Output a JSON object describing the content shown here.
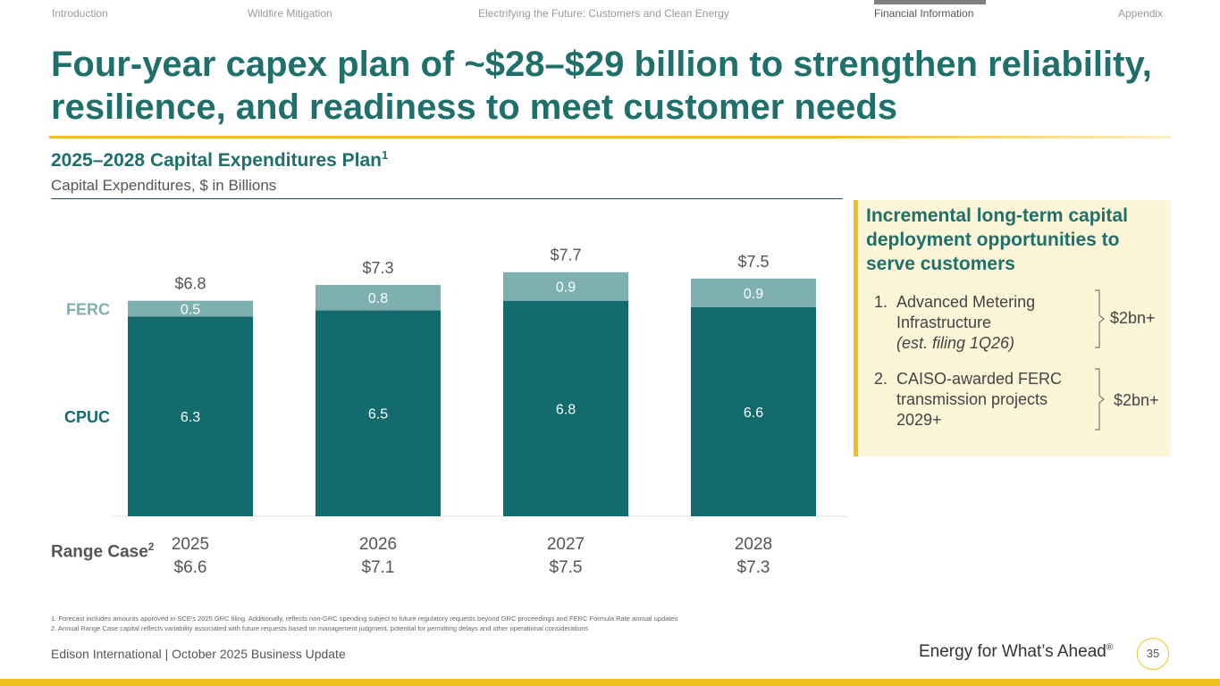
{
  "nav": {
    "items": [
      "Introduction",
      "Wildfire Mitigation",
      "Electrifying the Future: Customers and Clean Energy",
      "Financial Information",
      "Appendix"
    ],
    "active_index": 3
  },
  "title": "Four-year capex plan of ~$28–$29 billion to strengthen reliability, resilience, and readiness to meet customer needs",
  "subtitle": "2025–2028 Capital Expenditures Plan",
  "subtitle_sup": "1",
  "unit_label": "Capital Expenditures, $ in Billions",
  "chart_data": {
    "type": "bar",
    "stacked": true,
    "categories": [
      "2025",
      "2026",
      "2027",
      "2028"
    ],
    "series": [
      {
        "name": "CPUC",
        "values": [
          6.3,
          6.5,
          6.8,
          6.6
        ],
        "labels": [
          "6.3",
          "6.5",
          "6.8",
          "6.6"
        ],
        "color": "#146b6e"
      },
      {
        "name": "FERC",
        "values": [
          0.5,
          0.8,
          0.9,
          0.9
        ],
        "labels": [
          "0.5",
          "0.8",
          "0.9",
          "0.9"
        ],
        "color": "#7fb0b0"
      }
    ],
    "totals": [
      "$6.8",
      "$7.3",
      "$7.7",
      "$7.5"
    ],
    "range_case": [
      "$6.6",
      "$7.1",
      "$7.5",
      "$7.3"
    ],
    "range_case_label": "Range Case",
    "range_case_sup": "2",
    "ylim": [
      0,
      8.2
    ],
    "grid": false,
    "legend": "left"
  },
  "panel": {
    "title": "Incremental long-term capital deployment opportunities to serve customers",
    "items": [
      {
        "num": "1.",
        "text": "Advanced Metering Infrastructure",
        "note": "(est. filing 1Q26)",
        "amount": "$2bn+"
      },
      {
        "num": "2.",
        "text": "CAISO-awarded FERC transmission projects 2029+",
        "note": "",
        "amount": "$2bn+"
      }
    ]
  },
  "footnotes": [
    "1.   Forecast includes amounts approved in SCE’s 2025 GRC filing. Additionally, reflects non-GRC spending subject to future regulatory requests beyond GRC proceedings and FERC Formula Rate annual updates",
    "2.   Annual Range Case capital reflects variability associated with future requests based on management judgment, potential for permitting delays and other operational considerations"
  ],
  "footer": {
    "company": "Edison International |  October 2025 Business Update",
    "tagline": "Energy for What’s Ahead",
    "tagline_mark": "®",
    "page_number": "35"
  },
  "colors": {
    "brand_teal": "#1f6f6b",
    "accent_yellow": "#f2c01e",
    "cpuc": "#146b6e",
    "ferc": "#7fb0b0"
  }
}
